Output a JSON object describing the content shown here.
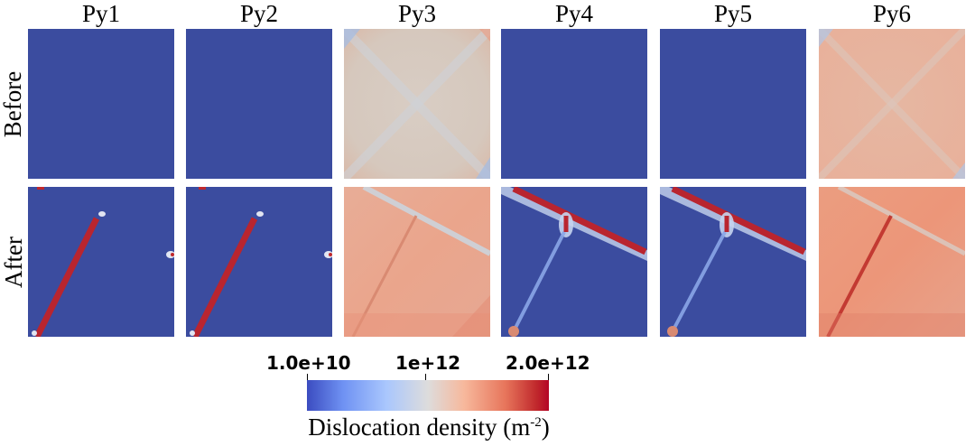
{
  "columns": [
    "Py1",
    "Py2",
    "Py3",
    "Py4",
    "Py5",
    "Py6"
  ],
  "rows": [
    "Before",
    "After"
  ],
  "colorbar": {
    "min_label": "1.0e+10",
    "mid_label": "1e+12",
    "max_label": "2.0e+12",
    "title_main": "Dislocation density (m",
    "title_sup": "-2",
    "title_end": ")"
  },
  "colors": {
    "low": "#3b4cc0",
    "mid": "#dddcdc",
    "high": "#b40426"
  }
}
